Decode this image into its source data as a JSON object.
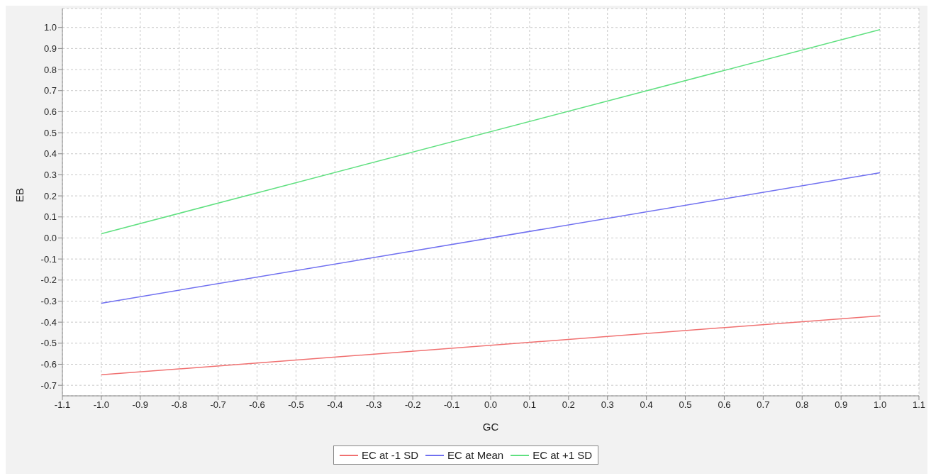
{
  "chart_data": {
    "type": "line",
    "xlabel": "GC",
    "ylabel": "EB",
    "x": [
      -1,
      1
    ],
    "series": [
      {
        "name": "EC at -1 SD",
        "color": "#f07070",
        "values": [
          -0.65,
          -0.37
        ]
      },
      {
        "name": "EC at Mean",
        "color": "#7070f0",
        "values": [
          -0.31,
          0.31
        ]
      },
      {
        "name": "EC at +1 SD",
        "color": "#60e080",
        "values": [
          0.02,
          0.99
        ]
      }
    ],
    "xlim": [
      -1.1,
      1.1
    ],
    "xticks": [
      -1.1,
      {
        "value": -1,
        "label": "-1.0"
      },
      -0.9,
      -0.8,
      -0.7,
      -0.6,
      -0.5,
      -0.4,
      -0.3,
      -0.2,
      -0.1,
      {
        "value": 0,
        "label": "0.0"
      },
      0.1,
      0.2,
      0.3,
      0.4,
      0.5,
      0.6,
      0.7,
      0.8,
      0.9,
      {
        "value": 1,
        "label": "1.0"
      },
      1.1
    ],
    "ylim": [
      -0.75,
      1.09
    ],
    "yticks": [
      -0.7,
      -0.6,
      -0.5,
      -0.4,
      -0.3,
      -0.2,
      -0.1,
      {
        "value": 0,
        "label": "0.0"
      },
      0.1,
      0.2,
      0.3,
      0.4,
      0.5,
      0.6,
      0.7,
      0.8,
      0.9,
      {
        "value": 1,
        "label": "1.0"
      }
    ],
    "grid": true,
    "legend": "bottom",
    "marker": "none",
    "line_style": "solid"
  }
}
